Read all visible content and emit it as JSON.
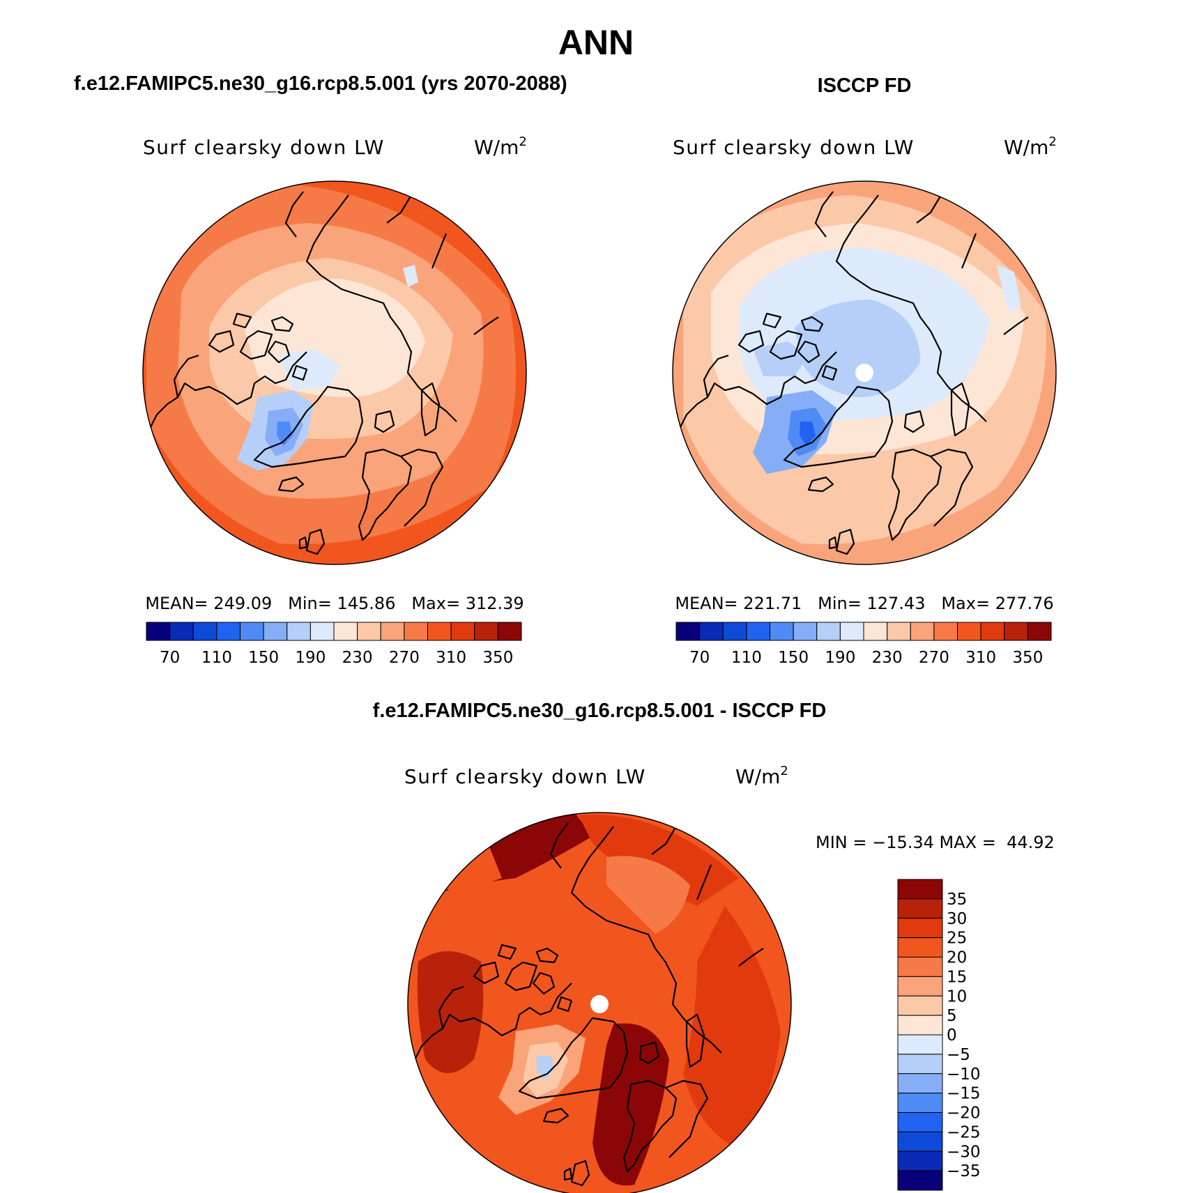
{
  "figure": {
    "title": "ANN",
    "diff_title": "f.e12.FAMIPC5.ne30_g16.rcp8.5.001 - ISCCP FD",
    "colors": {
      "abs_scale": [
        "#08007a",
        "#0a2bb5",
        "#0e4ad8",
        "#1f63f0",
        "#4f8af5",
        "#86aef7",
        "#b6cff9",
        "#ddeafb",
        "#fde6d5",
        "#fbc8a8",
        "#f9a47a",
        "#f67a47",
        "#f2561f",
        "#e03a0e",
        "#b8220a",
        "#8b0606"
      ],
      "diff_scale": [
        "#8b0606",
        "#b8220a",
        "#e03a0e",
        "#f2561f",
        "#f67a47",
        "#f9a47a",
        "#fbc8a8",
        "#fde6d5",
        "#ddeafb",
        "#b6cff9",
        "#86aef7",
        "#4f8af5",
        "#1f63f0",
        "#0e4ad8",
        "#0a2bb5",
        "#08007a"
      ]
    }
  },
  "panels": [
    {
      "title": "f.e12.FAMIPC5.ne30_g16.rcp8.5.001 (yrs 2070-2088)",
      "field": "Surf clearsky down LW",
      "units_base": "W/m",
      "units_exp": "2",
      "stats": "MEAN= 249.09   Min= 145.86   Max= 312.39",
      "ticks": [
        "70",
        "110",
        "150",
        "190",
        "230",
        "270",
        "310",
        "350"
      ]
    },
    {
      "title": "ISCCP FD",
      "field": "Surf clearsky down LW",
      "units_base": "W/m",
      "units_exp": "2",
      "stats": "MEAN= 221.71   Min= 127.43   Max= 277.76",
      "ticks": [
        "70",
        "110",
        "150",
        "190",
        "230",
        "270",
        "310",
        "350"
      ]
    }
  ],
  "difference": {
    "field": "Surf clearsky down LW",
    "units_base": "W/m",
    "units_exp": "2",
    "stats": "MIN = −15.34 MAX =  44.92",
    "ticks": [
      "35",
      "30",
      "25",
      "20",
      "15",
      "10",
      "5",
      "0",
      "−5",
      "−10",
      "−15",
      "−20",
      "−25",
      "−30",
      "−35"
    ]
  }
}
